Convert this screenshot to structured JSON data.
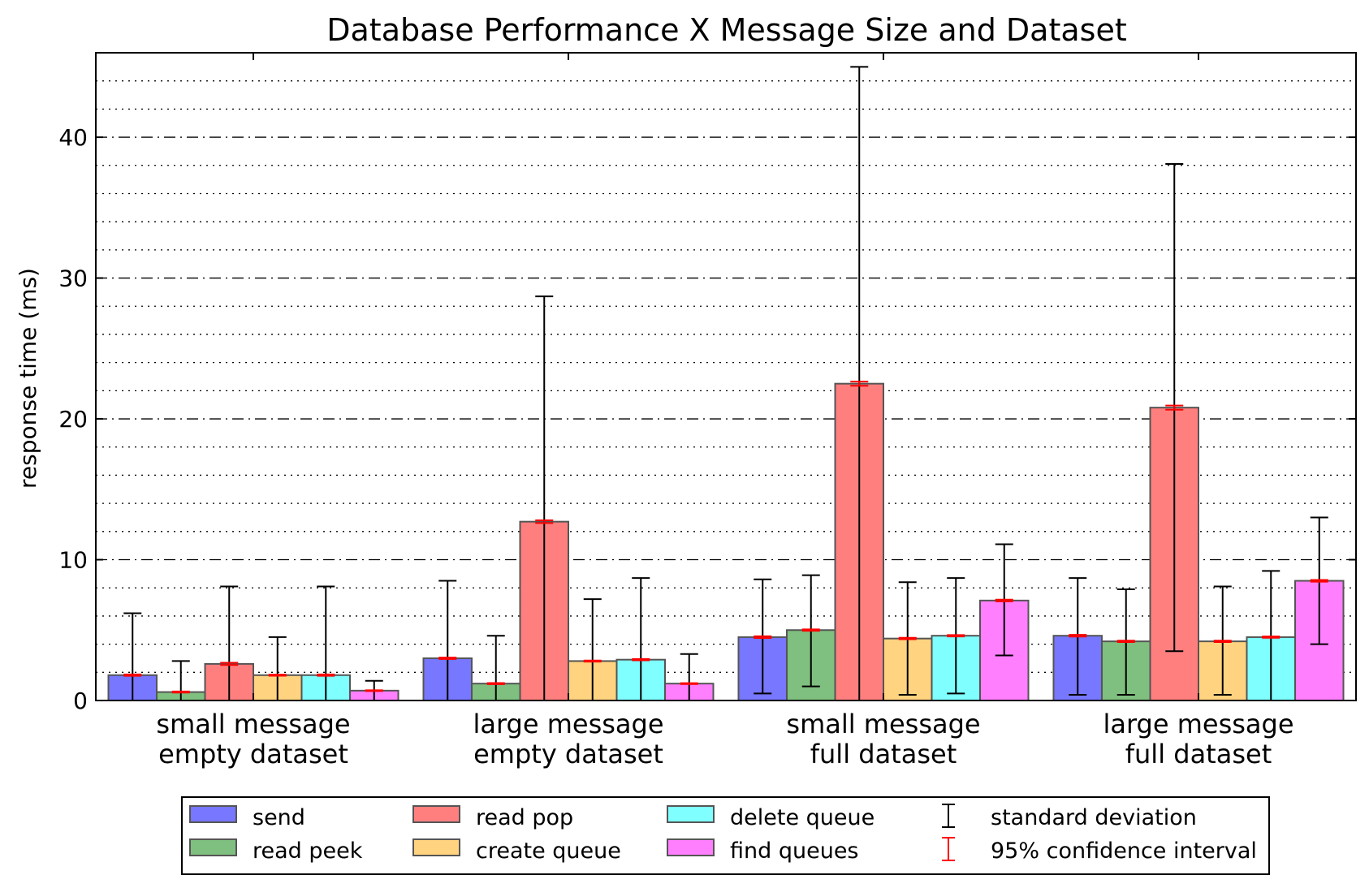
{
  "chart_data": {
    "type": "bar",
    "title": "Database Performance X Message Size and Dataset",
    "xlabel": "",
    "ylabel": "response time (ms)",
    "ylim": [
      0,
      46
    ],
    "yticks": [
      0,
      10,
      20,
      30,
      40
    ],
    "grid": true,
    "legend_position": "bottom",
    "categories": [
      [
        "small message",
        "empty dataset"
      ],
      [
        "large message",
        "empty dataset"
      ],
      [
        "small message",
        "full dataset"
      ],
      [
        "large message",
        "full dataset"
      ]
    ],
    "series": [
      {
        "name": "send",
        "color": "#7777ff",
        "values": [
          1.8,
          3.0,
          4.5,
          4.6
        ],
        "std_low": [
          0,
          0,
          0.5,
          0.4
        ],
        "std_high": [
          6.2,
          8.5,
          8.6,
          8.7
        ],
        "ci": [
          0.05,
          0.05,
          0.06,
          0.06
        ]
      },
      {
        "name": "read peek",
        "color": "#7fbf7f",
        "values": [
          0.6,
          1.2,
          5.0,
          4.2
        ],
        "std_low": [
          0,
          0,
          1.0,
          0.4
        ],
        "std_high": [
          2.8,
          4.6,
          8.9,
          7.9
        ],
        "ci": [
          0.04,
          0.04,
          0.05,
          0.05
        ]
      },
      {
        "name": "read pop",
        "color": "#ff7f7f",
        "values": [
          2.6,
          12.7,
          22.5,
          20.8
        ],
        "std_low": [
          0,
          0,
          0,
          3.5
        ],
        "std_high": [
          8.1,
          28.7,
          45.0,
          38.1
        ],
        "ci": [
          0.08,
          0.1,
          0.15,
          0.15
        ]
      },
      {
        "name": "create queue",
        "color": "#ffd37f",
        "values": [
          1.8,
          2.8,
          4.4,
          4.2
        ],
        "std_low": [
          0,
          0,
          0.4,
          0.4
        ],
        "std_high": [
          4.5,
          7.2,
          8.4,
          8.1
        ],
        "ci": [
          0.04,
          0.04,
          0.05,
          0.05
        ]
      },
      {
        "name": "delete queue",
        "color": "#7fffff",
        "values": [
          1.8,
          2.9,
          4.6,
          4.5
        ],
        "std_low": [
          0,
          0,
          0.5,
          0
        ],
        "std_high": [
          8.1,
          8.7,
          8.7,
          9.2
        ],
        "ci": [
          0.05,
          0.05,
          0.05,
          0.05
        ]
      },
      {
        "name": "find queues",
        "color": "#ff7fff",
        "values": [
          0.7,
          1.2,
          7.1,
          8.5
        ],
        "std_low": [
          0,
          0,
          3.2,
          4.0
        ],
        "std_high": [
          1.4,
          3.3,
          11.1,
          13.0
        ],
        "ci": [
          0.03,
          0.03,
          0.06,
          0.06
        ]
      }
    ],
    "legend_extra": [
      {
        "name": "standard deviation",
        "color": "#000000"
      },
      {
        "name": "95% confidence interval",
        "color": "#ff0000"
      }
    ]
  }
}
